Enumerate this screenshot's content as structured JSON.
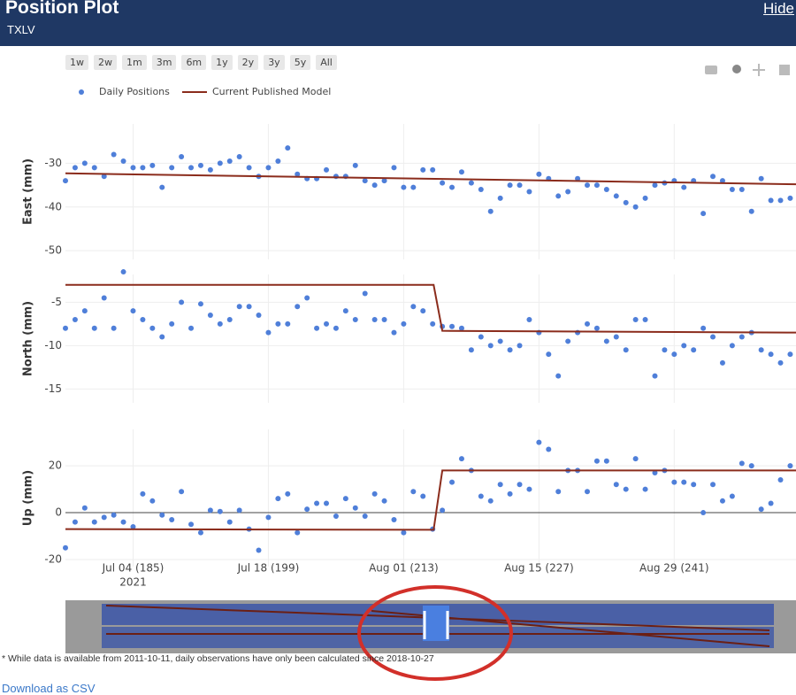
{
  "header": {
    "title": "Position Plot",
    "subtitle": "TXLV",
    "hide": "Hide"
  },
  "range_buttons": [
    "1w",
    "2w",
    "1m",
    "3m",
    "6m",
    "1y",
    "2y",
    "3y",
    "5y",
    "All"
  ],
  "footnote": "* While data is available from 2011-10-11, daily observations have only been calculated since 2018-10-27",
  "download": "Download as CSV",
  "chart_data": [
    {
      "type": "scatter",
      "ylabel": "East (mm)",
      "ylim": [
        -52,
        -21
      ],
      "yticks": [
        -30,
        -40,
        -50
      ],
      "xlim": [
        178,
        253.6
      ],
      "xticks": [
        185,
        199,
        213,
        227,
        241
      ],
      "grid": true,
      "x": [
        178,
        179,
        180,
        181,
        182,
        183,
        184,
        185,
        186,
        187,
        188,
        189,
        190,
        191,
        192,
        193,
        194,
        195,
        196,
        197,
        198,
        199,
        200,
        201,
        202,
        203,
        204,
        205,
        206,
        207,
        208,
        209,
        210,
        211,
        212,
        213,
        214,
        215,
        216,
        217,
        218,
        219,
        220,
        221,
        222,
        223,
        224,
        225,
        226,
        227,
        228,
        229,
        230,
        231,
        232,
        233,
        234,
        235,
        236,
        237,
        238,
        239,
        240,
        241,
        242,
        243,
        244,
        245,
        246,
        247,
        248,
        249,
        250,
        251,
        252,
        253
      ],
      "series": [
        {
          "name": "Daily Positions",
          "color": "#4f7fd9",
          "mode": "markers",
          "values": [
            -34,
            -31,
            -30,
            -31,
            -33,
            -28,
            -29.5,
            -31,
            -31,
            -30.5,
            -35.5,
            -31,
            -28.5,
            -31,
            -30.5,
            -31.5,
            -30,
            -29.5,
            -28.5,
            -31,
            -33,
            -31,
            -29.5,
            -26.5,
            -32.5,
            -33.5,
            -33.5,
            -31.5,
            -33,
            -33,
            -30.5,
            -34,
            -35,
            -34,
            -31,
            -35.5,
            -35.5,
            -31.5,
            -31.5,
            -34.5,
            -35.5,
            -32,
            -34.5,
            -36,
            -41,
            -38,
            -35,
            -35,
            -36.5,
            -32.5,
            -33.5,
            -37.5,
            -36.5,
            -33.5,
            -35,
            -35,
            -36,
            -37.5,
            -39,
            -40,
            -38,
            -35,
            -34.5,
            -34,
            -35.5,
            -34,
            -41.5,
            -33,
            -34,
            -36,
            -36,
            -41,
            -33.5,
            -38.5,
            -38.5,
            -38
          ]
        },
        {
          "name": "Current Published Model",
          "color": "#8b2c1c",
          "mode": "lines",
          "x": [
            178,
            253.6
          ],
          "values": [
            -32.3,
            -34.8
          ]
        }
      ]
    },
    {
      "type": "scatter",
      "ylabel": "North (mm)",
      "ylim": [
        -16.6,
        -1.8
      ],
      "yticks": [
        -5,
        -10,
        -15
      ],
      "xlim": [
        178,
        253.6
      ],
      "xticks": [
        185,
        199,
        213,
        227,
        241
      ],
      "grid": true,
      "x": [
        178,
        179,
        180,
        181,
        182,
        183,
        184,
        185,
        186,
        187,
        188,
        189,
        190,
        191,
        192,
        193,
        194,
        195,
        196,
        197,
        198,
        199,
        200,
        201,
        202,
        203,
        204,
        205,
        206,
        207,
        208,
        209,
        210,
        211,
        212,
        213,
        214,
        215,
        216,
        217,
        218,
        219,
        220,
        221,
        222,
        223,
        224,
        225,
        226,
        227,
        228,
        229,
        230,
        231,
        232,
        233,
        234,
        235,
        236,
        237,
        238,
        239,
        240,
        241,
        242,
        243,
        244,
        245,
        246,
        247,
        248,
        249,
        250,
        251,
        252,
        253
      ],
      "series": [
        {
          "color": "#4f7fd9",
          "mode": "markers",
          "values": [
            -8,
            -7,
            -6,
            -8,
            -4.5,
            -8,
            -1.5,
            -6,
            -7,
            -8,
            -9,
            -7.5,
            -5,
            -8,
            -5.2,
            -6.5,
            -7.5,
            -7,
            -5.5,
            -5.5,
            -6.5,
            -8.5,
            -7.5,
            -7.5,
            -5.5,
            -4.5,
            -8,
            -7.5,
            -8,
            -6,
            -7,
            -4,
            -7,
            -7,
            -8.5,
            -7.5,
            -5.5,
            -6,
            -7.5,
            -7.8,
            -7.8,
            -8,
            -10.5,
            -9,
            -10,
            -9.5,
            -10.5,
            -10,
            -7,
            -8.5,
            -11,
            -13.5,
            -9.5,
            -8.5,
            -7.5,
            -8,
            -9.5,
            -9,
            -10.5,
            -7,
            -7,
            -13.5,
            -10.5,
            -11,
            -10,
            -10.5,
            -8,
            -9,
            -12,
            -10,
            -9,
            -8.5,
            -10.5,
            -11,
            -12,
            -11
          ]
        },
        {
          "color": "#8b2c1c",
          "mode": "lines",
          "x": [
            178,
            216.1,
            217,
            253.6
          ],
          "values": [
            -3,
            -3,
            -8.3,
            -8.5
          ]
        }
      ]
    },
    {
      "type": "scatter",
      "ylabel": "Up (mm)",
      "ylim": [
        -23,
        35.5
      ],
      "yticks": [
        20,
        0,
        -20
      ],
      "zeroline": true,
      "xlim": [
        178,
        253.6
      ],
      "grid": true,
      "xticks": [
        {
          "value": 185,
          "label": "Jul 04 (185)"
        },
        {
          "value": 199,
          "label": "Jul 18 (199)"
        },
        {
          "value": 213,
          "label": "Aug 01 (213)"
        },
        {
          "value": 227,
          "label": "Aug 15 (227)"
        },
        {
          "value": 241,
          "label": "Aug 29 (241)"
        }
      ],
      "x_sublabel": "2021",
      "x": [
        178,
        179,
        180,
        181,
        182,
        183,
        184,
        185,
        186,
        187,
        188,
        189,
        190,
        191,
        192,
        193,
        194,
        195,
        196,
        197,
        198,
        199,
        200,
        201,
        202,
        203,
        204,
        205,
        206,
        207,
        208,
        209,
        210,
        211,
        212,
        213,
        214,
        215,
        216,
        217,
        218,
        219,
        220,
        221,
        222,
        223,
        224,
        225,
        226,
        227,
        228,
        229,
        230,
        231,
        232,
        233,
        234,
        235,
        236,
        237,
        238,
        239,
        240,
        241,
        242,
        243,
        244,
        245,
        246,
        247,
        248,
        249,
        250,
        251,
        252,
        253
      ],
      "series": [
        {
          "color": "#4f7fd9",
          "mode": "markers",
          "values": [
            -15,
            -4,
            2,
            -4,
            -2,
            -1,
            -4,
            -6,
            8,
            5,
            -1,
            -3,
            9,
            -5,
            -8.5,
            1,
            0.5,
            -4,
            1,
            -7,
            -16,
            -2,
            6,
            8,
            -8.5,
            1.5,
            4,
            4,
            -1.5,
            6,
            2,
            -1.5,
            8,
            5,
            -3,
            -8.5,
            9,
            7,
            -7,
            1,
            13,
            23,
            18,
            7,
            5,
            12,
            8,
            12,
            10,
            30,
            27,
            9,
            18,
            18,
            9,
            22,
            22,
            12,
            10,
            23,
            10,
            17,
            18,
            13,
            13,
            12,
            0,
            12,
            5,
            7,
            21,
            20,
            1.5,
            4,
            14,
            20
          ]
        },
        {
          "color": "#8b2c1c",
          "mode": "lines",
          "x": [
            178,
            216.1,
            217,
            253.6
          ],
          "values": [
            -7,
            -7.3,
            18,
            18
          ]
        }
      ]
    }
  ]
}
